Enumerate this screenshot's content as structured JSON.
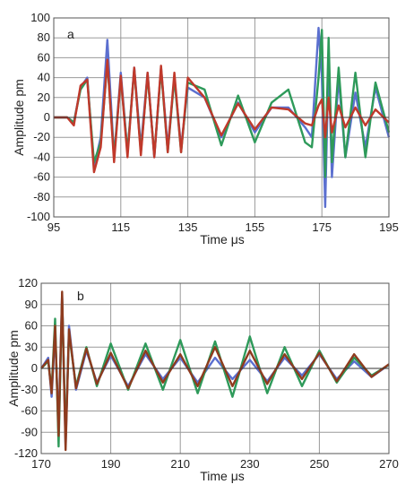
{
  "chart_data": [
    {
      "type": "line",
      "panel_label": "a",
      "xlabel": "Time  μs",
      "ylabel": "Amplitude  pm",
      "xlim": [
        95,
        195
      ],
      "ylim": [
        -100,
        100
      ],
      "x_ticks": [
        95,
        115,
        135,
        155,
        175,
        195
      ],
      "y_ticks": [
        100,
        80,
        60,
        40,
        20,
        0,
        -20,
        -40,
        -60,
        -80,
        -100
      ],
      "grid": true,
      "series": [
        {
          "color": "#5b6fcf",
          "x": [
            95,
            99,
            101,
            103,
            105,
            107,
            109,
            111,
            113,
            115,
            117,
            119,
            121,
            123,
            125,
            127,
            129,
            131,
            133,
            135,
            140,
            145,
            150,
            155,
            160,
            165,
            170,
            172,
            174,
            175,
            176,
            177,
            178,
            180,
            182,
            185,
            188,
            191,
            195
          ],
          "y": [
            0,
            0,
            -5,
            30,
            40,
            -50,
            -20,
            78,
            -40,
            45,
            -35,
            50,
            -30,
            45,
            -40,
            50,
            -30,
            40,
            -30,
            30,
            20,
            -20,
            15,
            -15,
            10,
            10,
            -10,
            -20,
            90,
            40,
            -90,
            60,
            -60,
            40,
            -40,
            25,
            -30,
            30,
            -20
          ]
        },
        {
          "color": "#2e9a5a",
          "x": [
            95,
            99,
            101,
            103,
            105,
            107,
            109,
            111,
            113,
            115,
            117,
            119,
            121,
            123,
            125,
            127,
            129,
            131,
            133,
            135,
            140,
            145,
            150,
            155,
            160,
            165,
            170,
            172,
            174,
            175,
            176,
            177,
            178,
            180,
            182,
            185,
            188,
            191,
            195
          ],
          "y": [
            0,
            0,
            -5,
            28,
            38,
            -45,
            -25,
            55,
            -40,
            40,
            -35,
            48,
            -35,
            42,
            -38,
            48,
            -35,
            40,
            -35,
            35,
            28,
            -28,
            22,
            -25,
            15,
            28,
            -25,
            -30,
            40,
            88,
            -60,
            80,
            -45,
            50,
            -40,
            45,
            -40,
            35,
            -15
          ]
        },
        {
          "color": "#c0392b",
          "x": [
            95,
            99,
            101,
            103,
            105,
            107,
            109,
            111,
            113,
            115,
            117,
            119,
            121,
            123,
            125,
            127,
            129,
            131,
            133,
            135,
            140,
            145,
            150,
            155,
            160,
            165,
            170,
            172,
            174,
            175,
            176,
            177,
            178,
            180,
            182,
            185,
            188,
            191,
            195
          ],
          "y": [
            0,
            0,
            -8,
            32,
            38,
            -55,
            -30,
            58,
            -45,
            42,
            -40,
            50,
            -38,
            45,
            -40,
            52,
            -35,
            45,
            -35,
            40,
            20,
            -18,
            14,
            -12,
            10,
            8,
            -6,
            -8,
            12,
            18,
            -20,
            20,
            -15,
            12,
            -10,
            10,
            -8,
            8,
            -5
          ]
        }
      ]
    },
    {
      "type": "line",
      "panel_label": "b",
      "xlabel": "Time  μs",
      "ylabel": "Amplitude  pm",
      "xlim": [
        170,
        270
      ],
      "ylim": [
        -120,
        120
      ],
      "x_ticks": [
        170,
        190,
        210,
        230,
        250,
        270
      ],
      "y_ticks": [
        120,
        90,
        60,
        30,
        0,
        -30,
        -60,
        -90,
        -120
      ],
      "grid": true,
      "series": [
        {
          "color": "#5b6fcf",
          "x": [
            170,
            172,
            173,
            174,
            175,
            176,
            177,
            178,
            180,
            183,
            186,
            190,
            195,
            200,
            205,
            210,
            215,
            220,
            225,
            230,
            235,
            240,
            245,
            250,
            255,
            260,
            265,
            270
          ],
          "y": [
            0,
            15,
            -40,
            50,
            -80,
            105,
            -110,
            60,
            -30,
            25,
            -20,
            18,
            -25,
            20,
            -15,
            15,
            -20,
            15,
            -15,
            12,
            -18,
            15,
            -10,
            20,
            -15,
            10,
            -12,
            5
          ]
        },
        {
          "color": "#2e9a5a",
          "x": [
            170,
            172,
            173,
            174,
            175,
            176,
            177,
            178,
            180,
            183,
            186,
            190,
            195,
            200,
            205,
            210,
            215,
            220,
            225,
            230,
            235,
            240,
            245,
            250,
            255,
            260,
            265,
            270
          ],
          "y": [
            0,
            10,
            -30,
            70,
            -110,
            100,
            -100,
            50,
            -25,
            30,
            -25,
            35,
            -30,
            35,
            -30,
            40,
            -35,
            38,
            -40,
            45,
            -35,
            30,
            -25,
            25,
            -20,
            15,
            -10,
            5
          ]
        },
        {
          "color": "#8e3b1e",
          "x": [
            170,
            172,
            173,
            174,
            175,
            176,
            177,
            178,
            180,
            183,
            186,
            190,
            195,
            200,
            205,
            210,
            215,
            220,
            225,
            230,
            235,
            240,
            245,
            250,
            255,
            260,
            265,
            270
          ],
          "y": [
            0,
            12,
            -35,
            60,
            -95,
            108,
            -115,
            55,
            -28,
            28,
            -22,
            22,
            -28,
            25,
            -20,
            20,
            -25,
            30,
            -25,
            25,
            -22,
            20,
            -15,
            22,
            -18,
            20,
            -12,
            6
          ]
        }
      ]
    }
  ]
}
